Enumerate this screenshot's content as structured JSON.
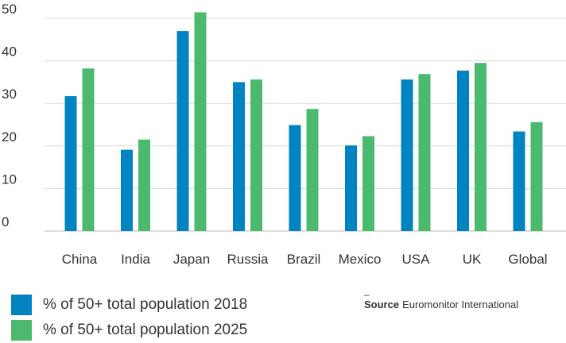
{
  "chart_data": {
    "type": "bar",
    "categories": [
      "China",
      "India",
      "Japan",
      "Russia",
      "Brazil",
      "Mexico",
      "USA",
      "UK",
      "Global"
    ],
    "series": [
      {
        "name": "% of 50+ total population 2018",
        "color": "#0083c1",
        "values": [
          31.7,
          19.1,
          47.0,
          35.0,
          24.9,
          20.1,
          35.6,
          37.7,
          23.4
        ]
      },
      {
        "name": "% of 50+ total population 2025",
        "color": "#4cba6e",
        "values": [
          38.2,
          21.5,
          51.4,
          35.6,
          28.7,
          22.3,
          36.9,
          39.5,
          25.6
        ]
      }
    ],
    "ylim": [
      0,
      50
    ],
    "yticks": [
      "0",
      "10",
      "20",
      "30",
      "40",
      "50"
    ],
    "grid": true,
    "legend_position": "bottom-left"
  },
  "source": {
    "label": "Source",
    "text": "Euromonitor International",
    "dash": "–"
  }
}
